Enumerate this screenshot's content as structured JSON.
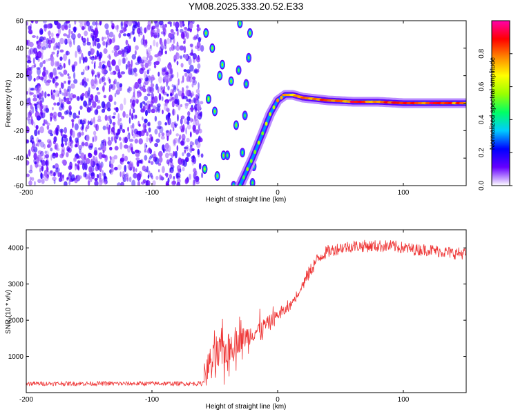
{
  "title": "YM08.2025.333.20.52.E33",
  "chart_data": [
    {
      "type": "heatmap",
      "xlabel": "Height of straight line (km)",
      "ylabel": "Frequency (Hz)",
      "xlim": [
        -200,
        150
      ],
      "ylim": [
        -60,
        60
      ],
      "xticks": [
        "-200",
        "-100",
        "0",
        "100"
      ],
      "xtick_values": [
        -200,
        -100,
        0,
        100
      ],
      "yticks": [
        "-60",
        "-40",
        "-20",
        "0",
        "20",
        "40",
        "60"
      ],
      "ytick_values": [
        -60,
        -40,
        -20,
        0,
        20,
        40,
        60
      ],
      "grid": false,
      "noise_region_x": [
        -200,
        -60
      ],
      "trace": {
        "x": [
          -30,
          -20,
          -12,
          -6,
          0,
          6,
          12,
          20,
          30,
          40,
          60,
          80,
          100,
          120,
          150
        ],
        "y": [
          -60,
          -40,
          -22,
          -8,
          2,
          6,
          6,
          4,
          3,
          2,
          1,
          1,
          0,
          0,
          0
        ],
        "amplitude": [
          0.5,
          0.55,
          0.6,
          0.7,
          0.75,
          0.8,
          0.85,
          0.9,
          0.9,
          0.85,
          0.9,
          0.85,
          0.9,
          0.9,
          0.9
        ]
      },
      "blobs": [
        {
          "x": -58,
          "y": -48,
          "a": 0.4
        },
        {
          "x": -57,
          "y": 51,
          "a": 0.35
        },
        {
          "x": -55,
          "y": 3,
          "a": 0.4
        },
        {
          "x": -52,
          "y": 40,
          "a": 0.35
        },
        {
          "x": -50,
          "y": -6,
          "a": 0.35
        },
        {
          "x": -48,
          "y": -53,
          "a": 0.35
        },
        {
          "x": -46,
          "y": 20,
          "a": 0.35
        },
        {
          "x": -44,
          "y": 28,
          "a": 0.35
        },
        {
          "x": -43,
          "y": -38,
          "a": 0.35
        },
        {
          "x": -40,
          "y": -38,
          "a": 0.3
        },
        {
          "x": -37,
          "y": 16,
          "a": 0.35
        },
        {
          "x": -35,
          "y": -60,
          "a": 0.3
        },
        {
          "x": -33,
          "y": -16,
          "a": 0.35
        },
        {
          "x": -31,
          "y": 24,
          "a": 0.3
        },
        {
          "x": -30,
          "y": 58,
          "a": 0.35
        },
        {
          "x": -28,
          "y": -36,
          "a": 0.3
        },
        {
          "x": -26,
          "y": -9,
          "a": 0.3
        },
        {
          "x": -25,
          "y": 14,
          "a": 0.3
        },
        {
          "x": -23,
          "y": 33,
          "a": 0.3
        },
        {
          "x": -22,
          "y": 51,
          "a": 0.35
        },
        {
          "x": -20,
          "y": -58,
          "a": 0.3
        },
        {
          "x": -19,
          "y": -46,
          "a": 0.3
        }
      ],
      "colorbar": {
        "label": "Normalized spectral amplitude",
        "ticks": [
          "0.0",
          "0.2",
          "0.4",
          "0.6",
          "0.8"
        ],
        "tick_values": [
          0,
          0.2,
          0.4,
          0.6,
          0.8
        ],
        "range": [
          0,
          1
        ],
        "colormap": [
          "#ffffff",
          "#6600ff",
          "#0000ff",
          "#00ccff",
          "#00ff66",
          "#99ff00",
          "#ffff00",
          "#ff8800",
          "#ff0000",
          "#ff00aa"
        ]
      }
    },
    {
      "type": "line",
      "xlabel": "Height of straight line (km)",
      "ylabel": "SNR (10 * v/v)",
      "xlim": [
        -200,
        150
      ],
      "ylim": [
        0,
        4500
      ],
      "xticks": [
        "-200",
        "-100",
        "0",
        "100"
      ],
      "xtick_values": [
        -200,
        -100,
        0,
        100
      ],
      "yticks": [
        "1000",
        "2000",
        "3000",
        "4000"
      ],
      "ytick_values": [
        1000,
        2000,
        3000,
        4000
      ],
      "grid": false,
      "series": [
        {
          "color": "#ee3333",
          "x": [
            -200,
            -150,
            -100,
            -60,
            -55,
            -50,
            -45,
            -40,
            -35,
            -30,
            -25,
            -20,
            -15,
            -10,
            -5,
            0,
            5,
            10,
            15,
            20,
            25,
            30,
            35,
            40,
            50,
            60,
            70,
            80,
            90,
            100,
            110,
            120,
            130,
            140,
            150
          ],
          "y": [
            250,
            250,
            250,
            250,
            800,
            900,
            1100,
            1200,
            1350,
            1450,
            1550,
            1650,
            1750,
            1850,
            2000,
            2150,
            2250,
            2400,
            2700,
            3000,
            3300,
            3600,
            3800,
            3900,
            4000,
            4050,
            4050,
            4050,
            4050,
            4000,
            3950,
            3950,
            3900,
            3850,
            3850
          ],
          "noise": [
            60,
            60,
            60,
            60,
            700,
            800,
            800,
            700,
            650,
            550,
            500,
            450,
            400,
            350,
            300,
            250,
            220,
            200,
            200,
            200,
            200,
            200,
            180,
            180,
            170,
            170,
            170,
            170,
            170,
            170,
            170,
            170,
            170,
            170,
            170
          ]
        }
      ]
    }
  ]
}
